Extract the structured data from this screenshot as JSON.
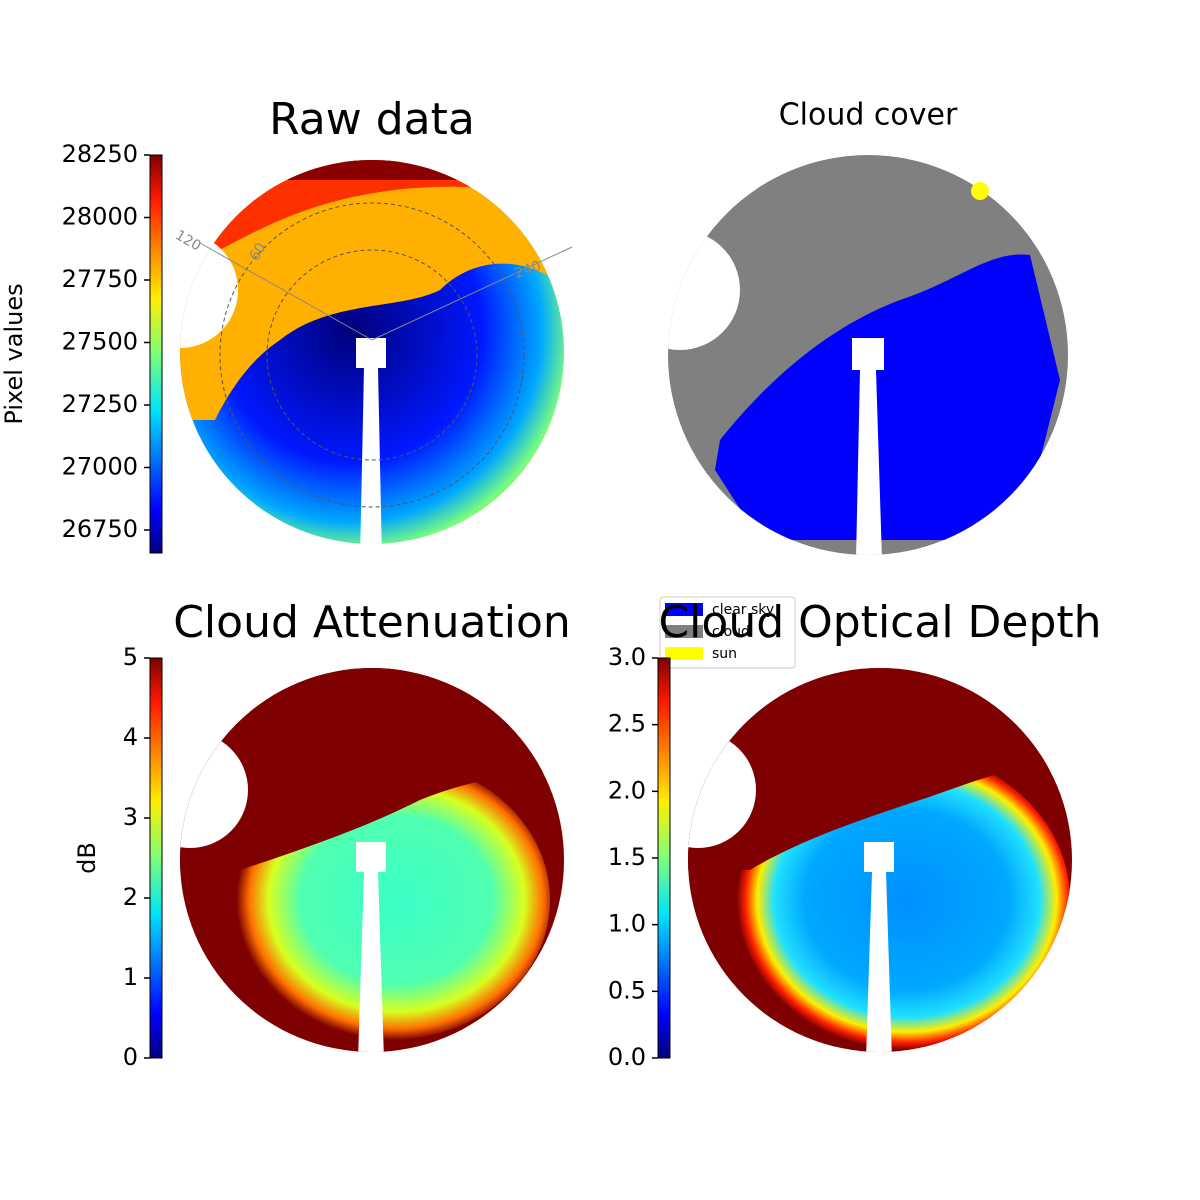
{
  "chart_data": [
    {
      "type": "image",
      "title": "Raw data",
      "colorbar_label": "Pixel values",
      "ylim": [
        26658,
        28250
      ],
      "yticks": [
        26750,
        27000,
        27250,
        27500,
        27750,
        28000,
        28250
      ],
      "annotations": [
        "120",
        "60",
        "240"
      ]
    },
    {
      "type": "image",
      "title": "Cloud cover",
      "series": [
        {
          "name": "clear sky",
          "color": "#0000ff"
        },
        {
          "name": "cloud",
          "color": "#808080"
        },
        {
          "name": "sun",
          "color": "#ffff00"
        }
      ]
    },
    {
      "type": "image",
      "title": "Cloud Attenuation",
      "colorbar_label": "dB",
      "ylim": [
        0,
        5
      ],
      "yticks": [
        0,
        1,
        2,
        3,
        4,
        5
      ]
    },
    {
      "type": "image",
      "title": "Cloud Optical Depth",
      "ylim": [
        0,
        3
      ],
      "yticks": [
        {
          "value": 0,
          "label": "0.0"
        },
        0.5,
        {
          "value": 1,
          "label": "1.0"
        },
        1.5,
        {
          "value": 2,
          "label": "2.0"
        },
        2.5,
        {
          "value": 3,
          "label": "3.0"
        }
      ]
    }
  ]
}
